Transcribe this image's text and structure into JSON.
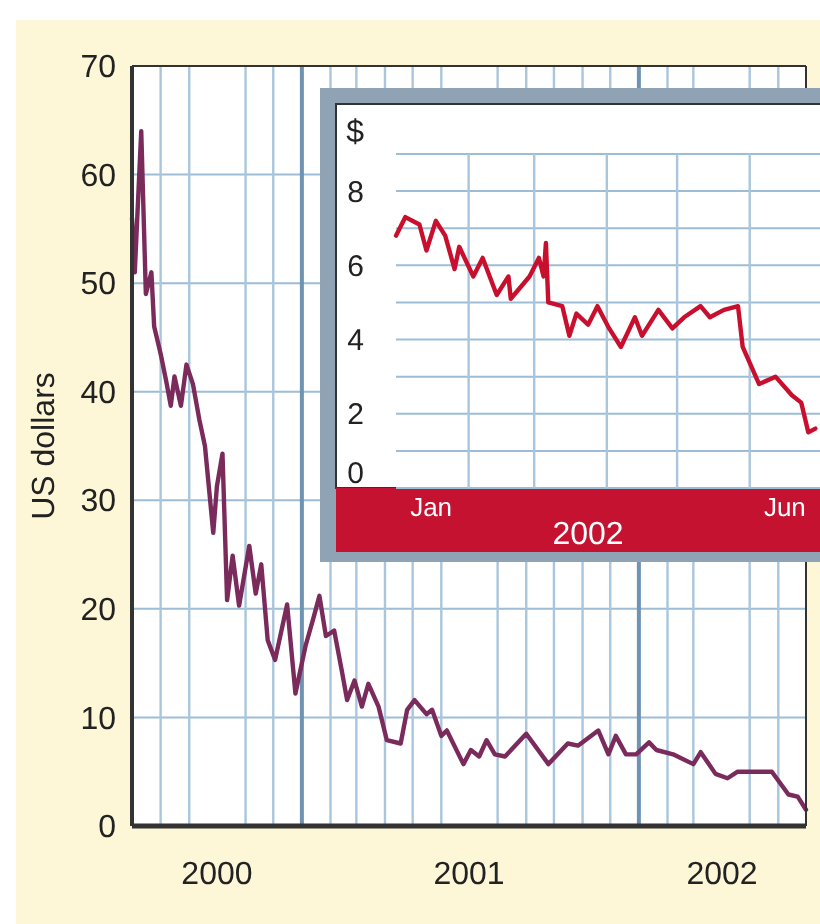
{
  "chart_data": [
    {
      "type": "line",
      "ylabel": "US dollars",
      "xlim": [
        "2000-07-01",
        "2002-07-01"
      ],
      "ylim": [
        0,
        70
      ],
      "yticks": [
        0,
        10,
        20,
        30,
        40,
        50,
        60,
        70
      ],
      "xticks": [
        {
          "value": "2000-08-01",
          "label": null
        },
        {
          "value": "2000-09-01",
          "label": null
        },
        {
          "value": "2000-10-01",
          "label": "2000"
        },
        {
          "value": "2000-11-01",
          "label": null
        },
        {
          "value": "2000-12-01",
          "label": null
        },
        {
          "value": "2001-01-01",
          "label": null
        },
        {
          "value": "2001-02-01",
          "label": null
        },
        {
          "value": "2001-03-01",
          "label": null
        },
        {
          "value": "2001-04-01",
          "label": null
        },
        {
          "value": "2001-05-01",
          "label": null
        },
        {
          "value": "2001-06-01",
          "label": null
        },
        {
          "value": "2001-07-01",
          "label": "2001"
        },
        {
          "value": "2001-08-01",
          "label": null
        },
        {
          "value": "2001-09-01",
          "label": null
        },
        {
          "value": "2001-10-01",
          "label": null
        },
        {
          "value": "2001-11-01",
          "label": null
        },
        {
          "value": "2001-12-01",
          "label": null
        },
        {
          "value": "2002-01-01",
          "label": null
        },
        {
          "value": "2002-02-01",
          "label": null
        },
        {
          "value": "2002-03-01",
          "label": null
        },
        {
          "value": "2002-04-01",
          "label": "2002"
        },
        {
          "value": "2002-05-01",
          "label": null
        },
        {
          "value": "2002-06-01",
          "label": null
        }
      ],
      "grid": true,
      "series": [
        {
          "color": "#7a2b5c",
          "x": [
            "2000-07-01",
            "2000-07-04",
            "2000-07-11",
            "2000-07-16",
            "2000-07-22",
            "2000-07-25",
            "2000-08-01",
            "2000-08-07",
            "2000-08-12",
            "2000-08-16",
            "2000-08-23",
            "2000-08-29",
            "2000-09-05",
            "2000-09-12",
            "2000-09-18",
            "2000-09-27",
            "2000-10-01",
            "2000-10-07",
            "2000-10-12",
            "2000-10-18",
            "2000-10-25",
            "2000-11-05",
            "2000-11-12",
            "2000-11-18",
            "2000-11-25",
            "2000-12-03",
            "2000-12-16",
            "2000-12-25",
            "2001-01-05",
            "2001-01-14",
            "2001-01-20",
            "2001-01-27",
            "2001-02-05",
            "2001-02-13",
            "2001-02-19",
            "2001-02-27",
            "2001-03-07",
            "2001-03-14",
            "2001-03-25",
            "2001-04-03",
            "2001-04-18",
            "2001-04-25",
            "2001-05-03",
            "2001-05-16",
            "2001-05-22",
            "2001-06-01",
            "2001-06-07",
            "2001-06-25",
            "2001-07-03",
            "2001-07-12",
            "2001-07-20",
            "2001-07-29",
            "2001-08-09",
            "2001-09-01",
            "2001-09-25",
            "2001-10-16",
            "2001-10-27",
            "2001-11-18",
            "2001-11-29",
            "2001-12-07",
            "2001-12-18",
            "2001-12-29",
            "2002-01-12",
            "2002-01-20",
            "2002-02-07",
            "2002-03-01",
            "2002-03-09",
            "2002-03-25",
            "2002-04-07",
            "2002-04-18",
            "2002-05-14",
            "2002-05-25",
            "2002-06-12",
            "2002-06-22",
            "2002-07-01"
          ],
          "values": [
            56,
            51,
            64,
            49,
            51,
            46,
            43.5,
            41,
            38.7,
            41.4,
            38.7,
            42.5,
            40.7,
            37.4,
            35,
            27,
            31.3,
            34.3,
            20.8,
            24.9,
            20.3,
            25.8,
            21.4,
            24.1,
            17.1,
            15.3,
            20.4,
            12.2,
            16.6,
            19.3,
            21.2,
            17.5,
            18,
            14.4,
            11.6,
            13.4,
            11,
            13.1,
            11,
            7.9,
            7.6,
            10.7,
            11.6,
            10.3,
            10.7,
            8.3,
            8.8,
            5.7,
            7,
            6.4,
            7.9,
            6.6,
            6.4,
            8.5,
            5.7,
            7.6,
            7.4,
            8.8,
            6.6,
            8.3,
            6.6,
            6.6,
            7.7,
            7,
            6.6,
            5.7,
            6.8,
            4.8,
            4.4,
            5,
            5,
            5,
            2.9,
            2.7,
            1.5
          ]
        }
      ]
    },
    {
      "type": "line",
      "ylabel": "$",
      "xlabel": "2002",
      "xlim": [
        "2002-01-01",
        "2002-07-01"
      ],
      "ylim": [
        0,
        9
      ],
      "yticks": [
        0,
        {
          "value": 1,
          "label": null
        },
        2,
        {
          "value": 3,
          "label": null
        },
        4,
        {
          "value": 5,
          "label": null
        },
        6,
        {
          "value": 7,
          "label": null
        },
        8,
        {
          "value": 9,
          "label": null
        }
      ],
      "xticks": [
        {
          "value": "2002-01-16",
          "label": "Jan"
        },
        {
          "value": "2002-02-01",
          "label": null
        },
        {
          "value": "2002-03-01",
          "label": null
        },
        {
          "value": "2002-04-01",
          "label": null
        },
        {
          "value": "2002-05-01",
          "label": null
        },
        {
          "value": "2002-06-01",
          "label": null
        },
        {
          "value": "2002-06-16",
          "label": "Jun"
        }
      ],
      "grid": true,
      "series": [
        {
          "color": "#c8102e",
          "x": [
            "2002-01-01",
            "2002-01-05",
            "2002-01-11",
            "2002-01-14",
            "2002-01-18",
            "2002-01-22",
            "2002-01-26",
            "2002-01-28",
            "2002-02-03",
            "2002-02-07",
            "2002-02-13",
            "2002-02-18",
            "2002-02-19",
            "2002-02-27",
            "2002-03-03",
            "2002-03-05",
            "2002-03-06",
            "2002-03-07",
            "2002-03-13",
            "2002-03-16",
            "2002-03-19",
            "2002-03-24",
            "2002-03-28",
            "2002-04-02",
            "2002-04-07",
            "2002-04-13",
            "2002-04-16",
            "2002-04-23",
            "2002-04-29",
            "2002-05-04",
            "2002-05-11",
            "2002-05-15",
            "2002-05-21",
            "2002-05-27",
            "2002-05-29",
            "2002-06-05",
            "2002-06-12",
            "2002-06-19",
            "2002-06-23",
            "2002-06-26",
            "2002-06-29"
          ],
          "values": [
            6.8,
            7.3,
            7.1,
            6.4,
            7.2,
            6.8,
            5.9,
            6.5,
            5.7,
            6.2,
            5.2,
            5.7,
            5.1,
            5.7,
            6.2,
            5.7,
            6.6,
            5.0,
            4.9,
            4.1,
            4.7,
            4.4,
            4.9,
            4.3,
            3.8,
            4.6,
            4.1,
            4.8,
            4.3,
            4.6,
            4.9,
            4.6,
            4.8,
            4.9,
            3.8,
            2.8,
            3.0,
            2.5,
            2.3,
            1.5,
            1.6
          ]
        }
      ]
    }
  ]
}
